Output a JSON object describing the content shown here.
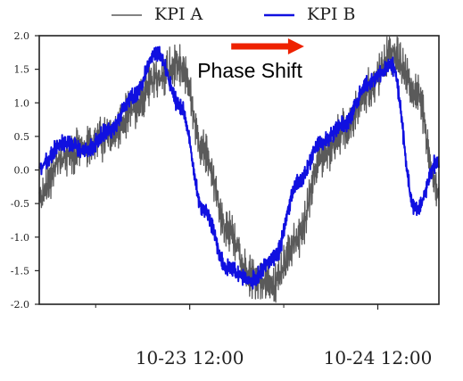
{
  "chart_data": {
    "type": "line",
    "title": "",
    "xlabel": "",
    "ylabel": "",
    "ylim": [
      -2.0,
      2.0
    ],
    "xlim": [
      "10-22 16:48",
      "10-24 19:36"
    ],
    "grid": false,
    "legend_position": "top-center",
    "x_ticks": [
      "10-23 12:00",
      "10-24 12:00"
    ],
    "y_ticks": [
      "2.0",
      "1.5",
      "1.0",
      "0.5",
      "0.0",
      "-0.5",
      "-1.0",
      "-1.5",
      "-2.0"
    ],
    "x_unit": "hours",
    "x": [
      0,
      3,
      6,
      9,
      12,
      15,
      18,
      21,
      24,
      27,
      30,
      33,
      36,
      39,
      42,
      45,
      48,
      51
    ],
    "series": [
      {
        "name": "KPI A",
        "color": "#5a5a5a",
        "values": [
          -0.4,
          0.2,
          0.35,
          0.5,
          0.9,
          1.4,
          1.55,
          0.3,
          -0.9,
          -1.6,
          -1.7,
          -1.0,
          0.2,
          0.6,
          1.2,
          1.75,
          1.2,
          -0.3
        ]
      },
      {
        "name": "KPI B",
        "color": "#1010e0",
        "values": [
          0.05,
          0.4,
          0.3,
          0.6,
          1.1,
          1.75,
          0.95,
          -0.6,
          -1.45,
          -1.65,
          -1.3,
          -0.2,
          0.4,
          0.7,
          1.3,
          1.55,
          -0.6,
          0.15
        ]
      }
    ],
    "annotation": {
      "text": "Phase Shift",
      "arrow_color": "#ee2200",
      "arrow_x": [
        24.5,
        33.8
      ],
      "arrow_y": 2.0
    }
  }
}
